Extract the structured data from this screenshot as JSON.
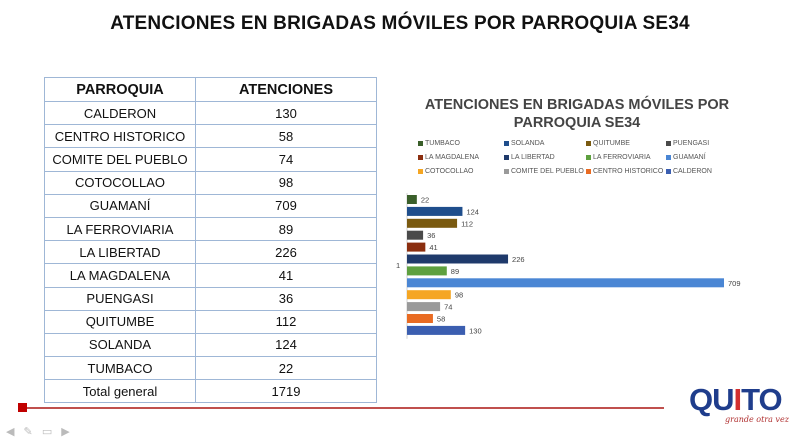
{
  "slide_title": "ATENCIONES EN BRIGADAS MÓVILES POR PARROQUIA SE34",
  "table": {
    "headers": [
      "PARROQUIA",
      "ATENCIONES"
    ],
    "rows": [
      {
        "parroquia": "CALDERON",
        "atenciones": "130"
      },
      {
        "parroquia": "CENTRO HISTORICO",
        "atenciones": "58"
      },
      {
        "parroquia": "COMITE DEL PUEBLO",
        "atenciones": "74"
      },
      {
        "parroquia": "COTOCOLLAO",
        "atenciones": "98"
      },
      {
        "parroquia": "GUAMANÍ",
        "atenciones": "709"
      },
      {
        "parroquia": "LA FERROVIARIA",
        "atenciones": "89"
      },
      {
        "parroquia": "LA LIBERTAD",
        "atenciones": "226"
      },
      {
        "parroquia": "LA MAGDALENA",
        "atenciones": "41"
      },
      {
        "parroquia": "PUENGASI",
        "atenciones": "36"
      },
      {
        "parroquia": "QUITUMBE",
        "atenciones": "112"
      },
      {
        "parroquia": "SOLANDA",
        "atenciones": "124"
      },
      {
        "parroquia": "TUMBACO",
        "atenciones": "22"
      }
    ],
    "total_label": "Total general",
    "total_value": "1719"
  },
  "chart_data": {
    "type": "bar",
    "orientation": "horizontal",
    "title": "ATENCIONES EN BRIGADAS MÓVILES POR PARROQUIA SE34",
    "category_tick": "1",
    "legend_position": "top",
    "grid": false,
    "xlim": [
      0,
      709
    ],
    "series": [
      {
        "name": "TUMBACO",
        "value": 22,
        "color": "#3a5f2a"
      },
      {
        "name": "SOLANDA",
        "value": 124,
        "color": "#1f4e8c"
      },
      {
        "name": "QUITUMBE",
        "value": 112,
        "color": "#7a5a10"
      },
      {
        "name": "PUENGASI",
        "value": 36,
        "color": "#4a4a4a"
      },
      {
        "name": "LA MAGDALENA",
        "value": 41,
        "color": "#8b2e0f"
      },
      {
        "name": "LA LIBERTAD",
        "value": 226,
        "color": "#1f3a6b"
      },
      {
        "name": "LA FERROVIARIA",
        "value": 89,
        "color": "#5ea03f"
      },
      {
        "name": "GUAMANÍ",
        "value": 709,
        "color": "#4a86d4"
      },
      {
        "name": "COTOCOLLAO",
        "value": 98,
        "color": "#f5a623"
      },
      {
        "name": "COMITE DEL PUEBLO",
        "value": 74,
        "color": "#9a9a9a"
      },
      {
        "name": "CENTRO HISTORICO",
        "value": 58,
        "color": "#e96b22"
      },
      {
        "name": "CALDERON",
        "value": 130,
        "color": "#3b5eb0"
      }
    ]
  },
  "logo": {
    "text": "QUITO",
    "tagline": "grande otra vez",
    "color_main": "#1f3d8c",
    "color_accent": "#d32f2f"
  },
  "toolbar": {
    "icons": [
      "prev-icon",
      "pen-icon",
      "screen-icon",
      "next-icon"
    ]
  }
}
